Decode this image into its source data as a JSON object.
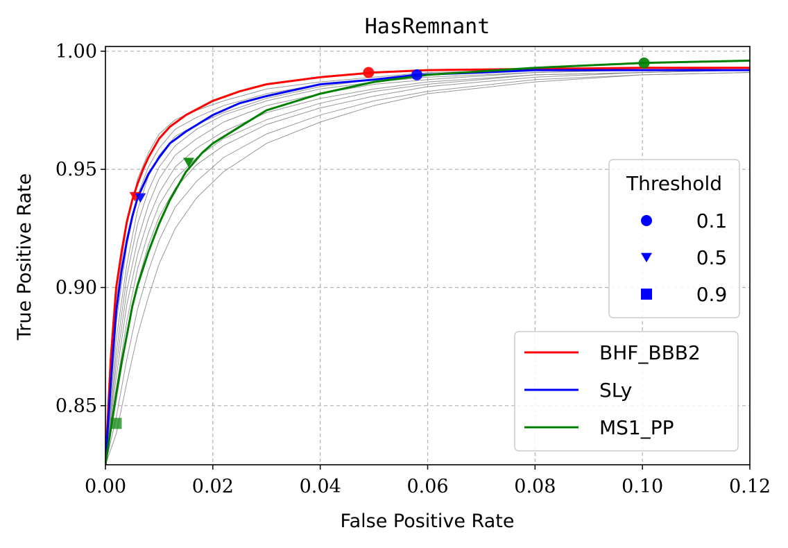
{
  "chart_data": {
    "type": "line",
    "title": "HasRemnant",
    "xlabel": "False Positive Rate",
    "ylabel": "True Positive Rate",
    "xlim": [
      0.0,
      0.12
    ],
    "ylim": [
      0.825,
      1.002
    ],
    "grid": true,
    "xticks": [
      "0.00",
      "0.02",
      "0.04",
      "0.06",
      "0.08",
      "0.10",
      "0.12"
    ],
    "yticks": [
      "0.85",
      "0.90",
      "0.95",
      "1.00"
    ],
    "series": [
      {
        "name": "BHF_BBB2",
        "color": "#ff0000",
        "x": [
          0.0,
          0.001,
          0.002,
          0.003,
          0.004,
          0.005,
          0.006,
          0.007,
          0.008,
          0.01,
          0.012,
          0.015,
          0.02,
          0.025,
          0.03,
          0.04,
          0.05,
          0.06,
          0.08,
          0.1,
          0.12
        ],
        "y": [
          0.825,
          0.87,
          0.9,
          0.915,
          0.928,
          0.937,
          0.944,
          0.95,
          0.955,
          0.963,
          0.968,
          0.973,
          0.979,
          0.983,
          0.986,
          0.989,
          0.991,
          0.992,
          0.9925,
          0.993,
          0.993
        ]
      },
      {
        "name": "SLy",
        "color": "#0000ff",
        "x": [
          0.0,
          0.001,
          0.002,
          0.003,
          0.004,
          0.005,
          0.006,
          0.008,
          0.01,
          0.012,
          0.015,
          0.02,
          0.025,
          0.03,
          0.04,
          0.05,
          0.058,
          0.07,
          0.08,
          0.1,
          0.12
        ],
        "y": [
          0.825,
          0.86,
          0.89,
          0.907,
          0.92,
          0.93,
          0.938,
          0.948,
          0.955,
          0.961,
          0.966,
          0.973,
          0.978,
          0.981,
          0.986,
          0.988,
          0.99,
          0.991,
          0.992,
          0.992,
          0.992
        ]
      },
      {
        "name": "MS1_PP",
        "color": "#008000",
        "x": [
          0.0,
          0.001,
          0.002,
          0.003,
          0.004,
          0.005,
          0.006,
          0.008,
          0.01,
          0.012,
          0.015,
          0.018,
          0.02,
          0.025,
          0.03,
          0.04,
          0.05,
          0.06,
          0.08,
          0.1,
          0.12
        ],
        "y": [
          0.825,
          0.84,
          0.855,
          0.868,
          0.88,
          0.892,
          0.901,
          0.915,
          0.927,
          0.937,
          0.949,
          0.957,
          0.961,
          0.968,
          0.975,
          0.982,
          0.987,
          0.99,
          0.993,
          0.995,
          0.996
        ]
      }
    ],
    "background_curves": [
      {
        "x": [
          0.0,
          0.002,
          0.004,
          0.006,
          0.008,
          0.01,
          0.013,
          0.017,
          0.022,
          0.03,
          0.04,
          0.05,
          0.06,
          0.08,
          0.1,
          0.12
        ],
        "y": [
          0.825,
          0.895,
          0.927,
          0.946,
          0.957,
          0.965,
          0.971,
          0.975,
          0.979,
          0.984,
          0.987,
          0.989,
          0.991,
          0.992,
          0.993,
          0.993
        ]
      },
      {
        "x": [
          0.0,
          0.002,
          0.004,
          0.006,
          0.008,
          0.01,
          0.013,
          0.017,
          0.022,
          0.03,
          0.04,
          0.05,
          0.06,
          0.08,
          0.1,
          0.12
        ],
        "y": [
          0.825,
          0.885,
          0.918,
          0.939,
          0.951,
          0.959,
          0.967,
          0.972,
          0.977,
          0.982,
          0.986,
          0.988,
          0.99,
          0.992,
          0.993,
          0.993
        ]
      },
      {
        "x": [
          0.0,
          0.002,
          0.004,
          0.006,
          0.008,
          0.01,
          0.013,
          0.017,
          0.022,
          0.03,
          0.04,
          0.05,
          0.06,
          0.08,
          0.1,
          0.12
        ],
        "y": [
          0.825,
          0.872,
          0.905,
          0.927,
          0.941,
          0.951,
          0.96,
          0.967,
          0.973,
          0.979,
          0.984,
          0.987,
          0.989,
          0.991,
          0.992,
          0.993
        ]
      },
      {
        "x": [
          0.0,
          0.002,
          0.004,
          0.006,
          0.008,
          0.01,
          0.013,
          0.017,
          0.022,
          0.03,
          0.04,
          0.05,
          0.06,
          0.08,
          0.1,
          0.12
        ],
        "y": [
          0.825,
          0.862,
          0.893,
          0.914,
          0.929,
          0.94,
          0.951,
          0.959,
          0.966,
          0.974,
          0.98,
          0.984,
          0.987,
          0.99,
          0.991,
          0.992
        ]
      },
      {
        "x": [
          0.0,
          0.002,
          0.004,
          0.006,
          0.008,
          0.01,
          0.013,
          0.017,
          0.022,
          0.03,
          0.04,
          0.05,
          0.06,
          0.08,
          0.1,
          0.12
        ],
        "y": [
          0.825,
          0.852,
          0.88,
          0.902,
          0.918,
          0.93,
          0.942,
          0.952,
          0.96,
          0.969,
          0.976,
          0.981,
          0.985,
          0.989,
          0.991,
          0.992
        ]
      },
      {
        "x": [
          0.0,
          0.002,
          0.004,
          0.006,
          0.008,
          0.01,
          0.013,
          0.017,
          0.022,
          0.03,
          0.04,
          0.05,
          0.06,
          0.08,
          0.1,
          0.12
        ],
        "y": [
          0.825,
          0.845,
          0.87,
          0.891,
          0.907,
          0.92,
          0.934,
          0.945,
          0.955,
          0.965,
          0.973,
          0.979,
          0.983,
          0.988,
          0.99,
          0.991
        ]
      },
      {
        "x": [
          0.0,
          0.002,
          0.004,
          0.006,
          0.008,
          0.01,
          0.013,
          0.017,
          0.022,
          0.03,
          0.04,
          0.05,
          0.06,
          0.08,
          0.1,
          0.12
        ],
        "y": [
          0.825,
          0.838,
          0.86,
          0.88,
          0.896,
          0.91,
          0.925,
          0.938,
          0.949,
          0.961,
          0.97,
          0.977,
          0.982,
          0.987,
          0.99,
          0.991
        ]
      },
      {
        "x": [
          0.0,
          0.002,
          0.004,
          0.006,
          0.008,
          0.01,
          0.013,
          0.017,
          0.022,
          0.03,
          0.04,
          0.05,
          0.06,
          0.08,
          0.1,
          0.12
        ],
        "y": [
          0.825,
          0.878,
          0.91,
          0.933,
          0.947,
          0.956,
          0.964,
          0.969,
          0.974,
          0.98,
          0.985,
          0.988,
          0.99,
          0.992,
          0.993,
          0.993
        ]
      },
      {
        "x": [
          0.0,
          0.002,
          0.004,
          0.006,
          0.008,
          0.01,
          0.013,
          0.017,
          0.022,
          0.03,
          0.04,
          0.05,
          0.06,
          0.08,
          0.1,
          0.12
        ],
        "y": [
          0.825,
          0.857,
          0.886,
          0.908,
          0.923,
          0.935,
          0.946,
          0.955,
          0.963,
          0.971,
          0.978,
          0.983,
          0.986,
          0.99,
          0.991,
          0.992
        ]
      },
      {
        "x": [
          0.0,
          0.002,
          0.004,
          0.006,
          0.008,
          0.01,
          0.013,
          0.017,
          0.022,
          0.03,
          0.04,
          0.05,
          0.06,
          0.08,
          0.1,
          0.12
        ],
        "y": [
          0.825,
          0.867,
          0.899,
          0.92,
          0.935,
          0.946,
          0.956,
          0.963,
          0.97,
          0.977,
          0.982,
          0.986,
          0.988,
          0.991,
          0.992,
          0.993
        ]
      }
    ],
    "threshold_markers": [
      {
        "series": "BHF_BBB2",
        "threshold": "0.1",
        "x": 0.049,
        "y": 0.991
      },
      {
        "series": "BHF_BBB2",
        "threshold": "0.5",
        "x": 0.0055,
        "y": 0.9385
      },
      {
        "series": "SLy",
        "threshold": "0.1",
        "x": 0.058,
        "y": 0.99
      },
      {
        "series": "SLy",
        "threshold": "0.5",
        "x": 0.0065,
        "y": 0.938
      },
      {
        "series": "MS1_PP",
        "threshold": "0.1",
        "x": 0.1003,
        "y": 0.995
      },
      {
        "series": "MS1_PP",
        "threshold": "0.5",
        "x": 0.0155,
        "y": 0.953
      },
      {
        "series": "MS1_PP",
        "threshold": "0.9",
        "x": 0.002,
        "y": 0.8425
      }
    ],
    "threshold_legend": {
      "title": "Threshold",
      "placement": "right",
      "marker_color": "#0000ff",
      "entries": [
        {
          "marker": "circle",
          "label": "0.1"
        },
        {
          "marker": "triangle-down",
          "label": "0.5"
        },
        {
          "marker": "square",
          "label": "0.9"
        }
      ]
    },
    "series_legend": {
      "placement": "lower-right",
      "entries": [
        {
          "label": "BHF_BBB2",
          "color": "#ff0000"
        },
        {
          "label": "SLy",
          "color": "#0000ff"
        },
        {
          "label": "MS1_PP",
          "color": "#008000"
        }
      ]
    }
  }
}
